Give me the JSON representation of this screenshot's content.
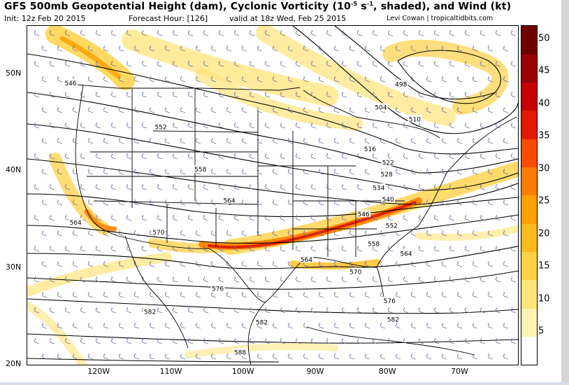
{
  "header": {
    "title_pre": "GFS 500mb Geopotential Height (dam), Cyclonic Vorticity (10",
    "title_exp": "-5",
    "title_unit": " s",
    "title_exp2": "-1",
    "title_post": ", shaded), and Wind (kt)",
    "init": "Init: 12z Feb 20 2015",
    "forecast_hour": "Forecast Hour: [126]",
    "valid": "valid at 18z Wed, Feb 25 2015",
    "credit": "Levi Cowan | tropicaltidbits.com"
  },
  "map": {
    "lon_range": [
      -130,
      -62
    ],
    "lat_range": [
      20,
      55
    ],
    "lat_labels": [
      {
        "lat": 50,
        "text": "50N"
      },
      {
        "lat": 40,
        "text": "40N"
      },
      {
        "lat": 30,
        "text": "30N"
      },
      {
        "lat": 20,
        "text": "20N"
      }
    ],
    "lon_labels": [
      {
        "lon": -120,
        "text": "120W"
      },
      {
        "lon": -110,
        "text": "110W"
      },
      {
        "lon": -100,
        "text": "100W"
      },
      {
        "lon": -90,
        "text": "90W"
      },
      {
        "lon": -80,
        "text": "80W"
      },
      {
        "lon": -70,
        "text": "70W"
      }
    ],
    "contour_labels": [
      {
        "text": "546",
        "lon": -124,
        "lat": 49.1
      },
      {
        "text": "552",
        "lon": -111.5,
        "lat": 44.6
      },
      {
        "text": "558",
        "lon": -106,
        "lat": 40.2
      },
      {
        "text": "564",
        "lon": -102,
        "lat": 37.0
      },
      {
        "text": "570",
        "lon": -111.8,
        "lat": 33.7
      },
      {
        "text": "576",
        "lon": -103.6,
        "lat": 27.9
      },
      {
        "text": "582",
        "lon": -113,
        "lat": 25.5
      },
      {
        "text": "582",
        "lon": -97.5,
        "lat": 24.4
      },
      {
        "text": "588",
        "lon": -100.5,
        "lat": 21.3
      },
      {
        "text": "564",
        "lon": -123.3,
        "lat": 34.7
      },
      {
        "text": "564",
        "lon": -91.3,
        "lat": 30.9
      },
      {
        "text": "570",
        "lon": -84.5,
        "lat": 29.6
      },
      {
        "text": "576",
        "lon": -79.8,
        "lat": 26.6
      },
      {
        "text": "582",
        "lon": -79.3,
        "lat": 24.7
      },
      {
        "text": "498",
        "lon": -78.2,
        "lat": 49.0
      },
      {
        "text": "504",
        "lon": -81.0,
        "lat": 46.6
      },
      {
        "text": "510",
        "lon": -76.3,
        "lat": 45.4
      },
      {
        "text": "516",
        "lon": -82.5,
        "lat": 42.3
      },
      {
        "text": "522",
        "lon": -80.0,
        "lat": 40.9
      },
      {
        "text": "528",
        "lon": -80.2,
        "lat": 39.7
      },
      {
        "text": "534",
        "lon": -81.3,
        "lat": 38.3
      },
      {
        "text": "540",
        "lon": -80.0,
        "lat": 37.1
      },
      {
        "text": "546",
        "lon": -83.4,
        "lat": 35.6
      },
      {
        "text": "552",
        "lon": -79.5,
        "lat": 34.4
      },
      {
        "text": "558",
        "lon": -82.0,
        "lat": 32.5
      },
      {
        "text": "564",
        "lon": -77.5,
        "lat": 31.5
      }
    ]
  },
  "colorbar": {
    "min": 0,
    "max": 52,
    "ticks": [
      5,
      10,
      15,
      20,
      25,
      30,
      35,
      40,
      45,
      50
    ],
    "labels": [
      "5",
      "10",
      "15",
      "20",
      "25",
      "30",
      "35",
      "40",
      "45",
      "50"
    ],
    "colors": [
      "#ffffff",
      "#fff3b4",
      "#ffe47a",
      "#ffd246",
      "#ffbb1e",
      "#ffa000",
      "#ff7c00",
      "#fa4a00",
      "#e21a00",
      "#c40000",
      "#9a0000",
      "#6e0000"
    ]
  }
}
